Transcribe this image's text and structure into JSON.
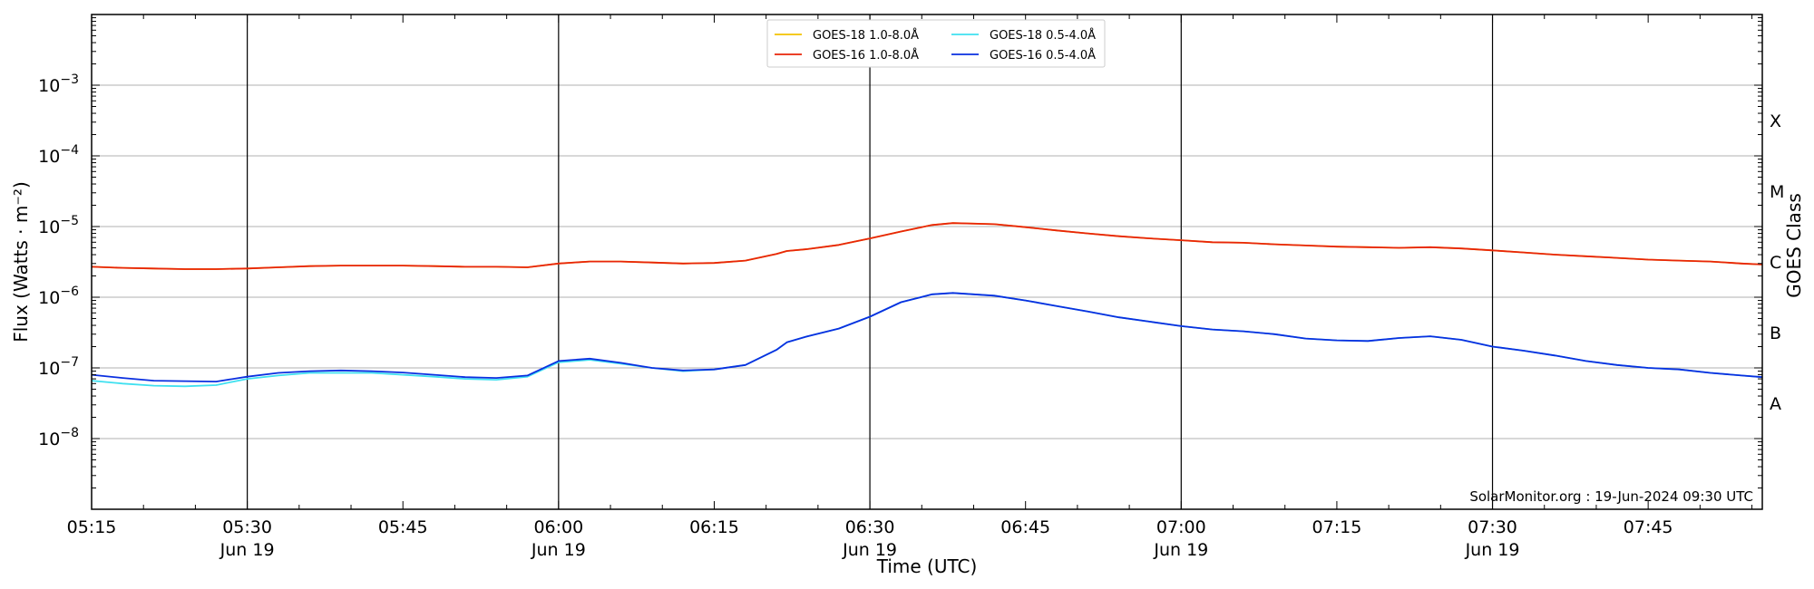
{
  "chart_data": {
    "type": "line",
    "title": "",
    "xlabel": "Time (UTC)",
    "ylabel": "Flux (Watts · m⁻²)",
    "right_ylabel": "GOES Class",
    "yscale": "log",
    "ylim": [
      1e-09,
      0.01
    ],
    "xlim": [
      "05:15",
      "07:56"
    ],
    "grid": "horizontal at each decade; vertical lines at half-hours",
    "legend_position": "top-center",
    "xticks": [
      {
        "t": "05:15",
        "label": "05:15",
        "date": ""
      },
      {
        "t": "05:30",
        "label": "05:30",
        "date": "Jun 19"
      },
      {
        "t": "05:45",
        "label": "05:45",
        "date": ""
      },
      {
        "t": "06:00",
        "label": "06:00",
        "date": "Jun 19"
      },
      {
        "t": "06:15",
        "label": "06:15",
        "date": ""
      },
      {
        "t": "06:30",
        "label": "06:30",
        "date": "Jun 19"
      },
      {
        "t": "06:45",
        "label": "06:45",
        "date": ""
      },
      {
        "t": "07:00",
        "label": "07:00",
        "date": "Jun 19"
      },
      {
        "t": "07:15",
        "label": "07:15",
        "date": ""
      },
      {
        "t": "07:30",
        "label": "07:30",
        "date": "Jun 19"
      },
      {
        "t": "07:45",
        "label": "07:45",
        "date": ""
      }
    ],
    "vertical_lines": [
      "05:30",
      "06:00",
      "06:30",
      "07:00",
      "07:30"
    ],
    "yticks": [
      {
        "value": 1e-08,
        "base": "10",
        "exp": "−8"
      },
      {
        "value": 1e-07,
        "base": "10",
        "exp": "−7"
      },
      {
        "value": 1e-06,
        "base": "10",
        "exp": "−6"
      },
      {
        "value": 1e-05,
        "base": "10",
        "exp": "−5"
      },
      {
        "value": 0.0001,
        "base": "10",
        "exp": "−4"
      },
      {
        "value": 0.001,
        "base": "10",
        "exp": "−3"
      }
    ],
    "goes_classes": [
      {
        "label": "A",
        "value": 3.16e-08
      },
      {
        "label": "B",
        "value": 3.16e-07
      },
      {
        "label": "C",
        "value": 3.16e-06
      },
      {
        "label": "M",
        "value": 3.16e-05
      },
      {
        "label": "X",
        "value": 0.000316
      }
    ],
    "x": [
      "05:15",
      "05:18",
      "05:21",
      "05:24",
      "05:27",
      "05:30",
      "05:33",
      "05:36",
      "05:39",
      "05:42",
      "05:45",
      "05:48",
      "05:51",
      "05:54",
      "05:57",
      "06:00",
      "06:03",
      "06:06",
      "06:09",
      "06:12",
      "06:15",
      "06:18",
      "06:21",
      "06:22",
      "06:24",
      "06:27",
      "06:30",
      "06:33",
      "06:36",
      "06:38",
      "06:42",
      "06:45",
      "06:48",
      "06:51",
      "06:54",
      "06:57",
      "07:00",
      "07:03",
      "07:06",
      "07:09",
      "07:12",
      "07:15",
      "07:18",
      "07:21",
      "07:24",
      "07:27",
      "07:30",
      "07:33",
      "07:36",
      "07:39",
      "07:42",
      "07:45",
      "07:48",
      "07:51",
      "07:54",
      "07:56"
    ],
    "series": [
      {
        "name": "GOES-18 1.0-8.0Å",
        "color": "#f2c200",
        "values": [
          2.7e-06,
          2.6e-06,
          2.55e-06,
          2.5e-06,
          2.5e-06,
          2.55e-06,
          2.65e-06,
          2.75e-06,
          2.8e-06,
          2.8e-06,
          2.8e-06,
          2.75e-06,
          2.7e-06,
          2.7e-06,
          2.65e-06,
          3e-06,
          3.2e-06,
          3.2e-06,
          3.1e-06,
          3e-06,
          3.05e-06,
          3.3e-06,
          4.1e-06,
          4.5e-06,
          4.8e-06,
          5.5e-06,
          6.8e-06,
          8.5e-06,
          1.05e-05,
          1.12e-05,
          1.08e-05,
          9.8e-06,
          8.8e-06,
          8e-06,
          7.3e-06,
          6.8e-06,
          6.4e-06,
          6e-06,
          5.9e-06,
          5.6e-06,
          5.4e-06,
          5.2e-06,
          5.1e-06,
          5e-06,
          5.1e-06,
          4.9e-06,
          4.6e-06,
          4.3e-06,
          4e-06,
          3.8e-06,
          3.6e-06,
          3.4e-06,
          3.3e-06,
          3.2e-06,
          3e-06,
          2.9e-06
        ]
      },
      {
        "name": "GOES-16 1.0-8.0Å",
        "color": "#e8250a",
        "values": [
          2.7e-06,
          2.6e-06,
          2.55e-06,
          2.5e-06,
          2.5e-06,
          2.55e-06,
          2.65e-06,
          2.75e-06,
          2.8e-06,
          2.8e-06,
          2.8e-06,
          2.75e-06,
          2.7e-06,
          2.7e-06,
          2.65e-06,
          3e-06,
          3.2e-06,
          3.2e-06,
          3.1e-06,
          3e-06,
          3.05e-06,
          3.3e-06,
          4.1e-06,
          4.5e-06,
          4.8e-06,
          5.5e-06,
          6.8e-06,
          8.5e-06,
          1.05e-05,
          1.12e-05,
          1.08e-05,
          9.8e-06,
          8.8e-06,
          8e-06,
          7.3e-06,
          6.8e-06,
          6.4e-06,
          6e-06,
          5.9e-06,
          5.6e-06,
          5.4e-06,
          5.2e-06,
          5.1e-06,
          5e-06,
          5.1e-06,
          4.9e-06,
          4.6e-06,
          4.3e-06,
          4e-06,
          3.8e-06,
          3.6e-06,
          3.4e-06,
          3.3e-06,
          3.2e-06,
          3e-06,
          2.9e-06
        ]
      },
      {
        "name": "GOES-18 0.5-4.0Å",
        "color": "#3fe0f0",
        "values": [
          6.6e-08,
          6e-08,
          5.6e-08,
          5.5e-08,
          5.7e-08,
          7e-08,
          7.8e-08,
          8.5e-08,
          8.5e-08,
          8.5e-08,
          8e-08,
          7.5e-08,
          7e-08,
          6.8e-08,
          7.5e-08,
          1.2e-07,
          1.3e-07,
          1.15e-07,
          1e-07,
          9e-08,
          9.5e-08,
          1.1e-07,
          1.8e-07,
          2.3e-07,
          2.8e-07,
          3.6e-07,
          5.3e-07,
          8.5e-07,
          1.1e-06,
          1.15e-06,
          1.05e-06,
          9e-07,
          7.5e-07,
          6.3e-07,
          5.2e-07,
          4.5e-07,
          3.9e-07,
          3.5e-07,
          3.3e-07,
          3e-07,
          2.6e-07,
          2.45e-07,
          2.4e-07,
          2.65e-07,
          2.8e-07,
          2.5e-07,
          2e-07,
          1.75e-07,
          1.5e-07,
          1.25e-07,
          1.1e-07,
          1e-07,
          9.5e-08,
          8.5e-08,
          7.8e-08,
          7.4e-08
        ]
      },
      {
        "name": "GOES-16 0.5-4.0Å",
        "color": "#0a2fe0",
        "values": [
          8e-08,
          7.2e-08,
          6.6e-08,
          6.5e-08,
          6.4e-08,
          7.5e-08,
          8.5e-08,
          9e-08,
          9.2e-08,
          9e-08,
          8.6e-08,
          8e-08,
          7.4e-08,
          7.2e-08,
          7.8e-08,
          1.25e-07,
          1.35e-07,
          1.18e-07,
          1e-07,
          9.2e-08,
          9.5e-08,
          1.1e-07,
          1.8e-07,
          2.3e-07,
          2.8e-07,
          3.6e-07,
          5.3e-07,
          8.5e-07,
          1.1e-06,
          1.15e-06,
          1.05e-06,
          9e-07,
          7.5e-07,
          6.3e-07,
          5.2e-07,
          4.5e-07,
          3.9e-07,
          3.5e-07,
          3.3e-07,
          3e-07,
          2.6e-07,
          2.45e-07,
          2.4e-07,
          2.65e-07,
          2.8e-07,
          2.5e-07,
          2e-07,
          1.75e-07,
          1.5e-07,
          1.25e-07,
          1.1e-07,
          1e-07,
          9.5e-08,
          8.5e-08,
          7.8e-08,
          7.4e-08
        ]
      }
    ]
  },
  "credit": "SolarMonitor.org : 19-Jun-2024 09:30 UTC"
}
